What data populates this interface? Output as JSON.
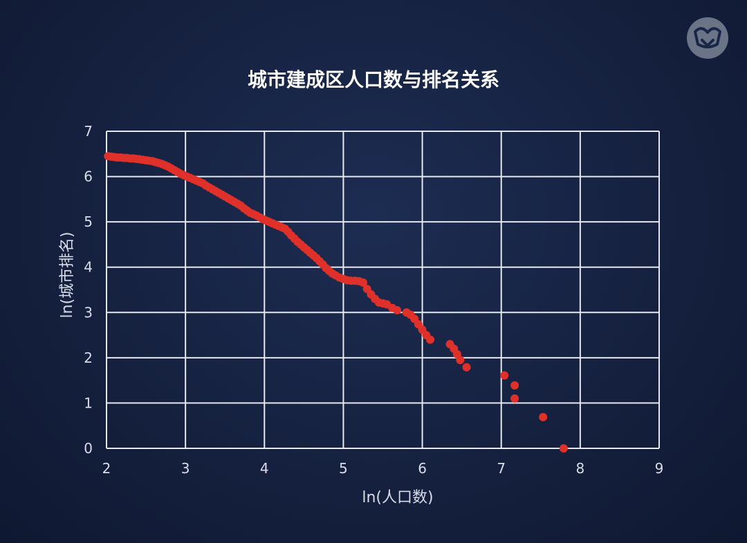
{
  "chart_data": {
    "type": "scatter",
    "title": "城市建成区人口数与排名关系",
    "xlabel": "ln(人口数)",
    "ylabel": "ln(城市排名)",
    "xlim": [
      2,
      9
    ],
    "ylim": [
      0,
      7
    ],
    "xticks": [
      "2",
      "3",
      "4",
      "5",
      "6",
      "7",
      "8",
      "9"
    ],
    "yticks": [
      "0",
      "1",
      "2",
      "3",
      "4",
      "5",
      "6",
      "7"
    ],
    "grid": true,
    "point_color": "#e0302a",
    "series": [
      {
        "x": [
          2.02,
          2.06,
          2.1,
          2.14,
          2.18,
          2.22,
          2.26,
          2.3,
          2.34,
          2.38,
          2.42,
          2.46,
          2.5,
          2.54,
          2.58,
          2.62,
          2.66,
          2.7,
          2.74,
          2.78,
          2.82,
          2.86,
          2.9,
          2.94,
          2.98,
          3.02,
          3.06,
          3.1,
          3.14,
          3.18,
          3.22,
          3.26,
          3.3,
          3.34,
          3.38,
          3.42,
          3.46,
          3.5,
          3.54,
          3.58,
          3.62,
          3.66,
          3.7,
          3.74,
          3.78,
          3.82,
          3.86,
          3.9,
          3.94,
          3.98,
          4.02,
          4.06,
          4.1,
          4.14,
          4.18,
          4.22,
          4.26,
          4.3,
          4.34,
          4.38,
          4.42,
          4.46,
          4.5,
          4.54,
          4.58,
          4.62,
          4.66,
          4.7,
          4.74,
          4.78,
          4.82,
          4.86,
          4.9,
          4.95,
          5.0,
          5.05,
          5.1,
          5.15,
          5.2,
          5.25,
          5.3,
          5.35,
          5.4,
          5.45,
          5.5,
          5.55,
          5.62,
          5.68,
          5.8,
          5.85,
          5.9,
          5.95,
          6.0,
          6.05,
          6.1,
          6.35,
          6.4,
          6.44,
          6.48,
          6.56,
          7.04,
          7.17,
          7.17,
          7.53,
          7.79
        ],
        "y": [
          6.45,
          6.44,
          6.43,
          6.42,
          6.42,
          6.41,
          6.41,
          6.4,
          6.4,
          6.39,
          6.38,
          6.37,
          6.36,
          6.35,
          6.34,
          6.32,
          6.3,
          6.28,
          6.25,
          6.22,
          6.18,
          6.14,
          6.1,
          6.06,
          6.03,
          6.0,
          5.97,
          5.94,
          5.91,
          5.88,
          5.85,
          5.8,
          5.76,
          5.72,
          5.68,
          5.64,
          5.6,
          5.56,
          5.52,
          5.48,
          5.44,
          5.4,
          5.36,
          5.3,
          5.25,
          5.2,
          5.17,
          5.14,
          5.1,
          5.06,
          5.03,
          5.0,
          4.97,
          4.94,
          4.91,
          4.88,
          4.85,
          4.78,
          4.7,
          4.63,
          4.56,
          4.5,
          4.44,
          4.38,
          4.32,
          4.26,
          4.2,
          4.13,
          4.06,
          3.98,
          3.92,
          3.86,
          3.82,
          3.77,
          3.74,
          3.71,
          3.7,
          3.7,
          3.69,
          3.66,
          3.52,
          3.4,
          3.3,
          3.22,
          3.2,
          3.18,
          3.1,
          3.05,
          3.0,
          2.95,
          2.86,
          2.74,
          2.62,
          2.5,
          2.4,
          2.3,
          2.2,
          2.08,
          1.95,
          1.79,
          1.61,
          1.39,
          1.1,
          0.69,
          0.0
        ]
      }
    ]
  }
}
